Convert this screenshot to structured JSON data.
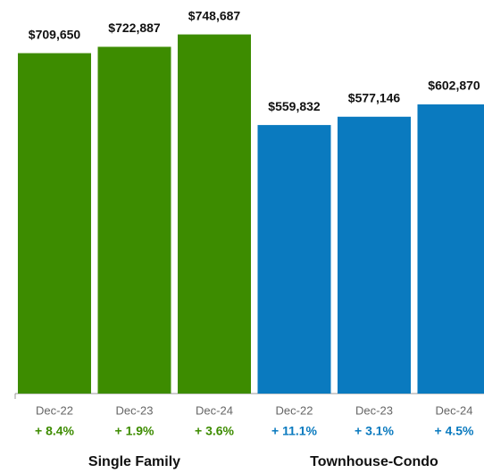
{
  "chart_data": [
    {
      "type": "bar",
      "title": "Single Family",
      "categories": [
        "Dec-22",
        "Dec-23",
        "Dec-24"
      ],
      "values": [
        709650,
        722887,
        748687
      ],
      "value_labels": [
        "$709,650",
        "$722,887",
        "$748,687"
      ],
      "change_labels": [
        "+ 8.4%",
        "+ 1.9%",
        "+ 3.6%"
      ],
      "color": "#3d8c00",
      "ylim": [
        0,
        800000
      ]
    },
    {
      "type": "bar",
      "title": "Townhouse-Condo",
      "categories": [
        "Dec-22",
        "Dec-23",
        "Dec-24"
      ],
      "values": [
        559832,
        577146,
        602870
      ],
      "value_labels": [
        "$559,832",
        "$577,146",
        "$602,870"
      ],
      "change_labels": [
        "+ 11.1%",
        "+ 3.1%",
        "+ 4.5%"
      ],
      "color": "#0a7abf",
      "ylim": [
        0,
        800000
      ]
    }
  ]
}
